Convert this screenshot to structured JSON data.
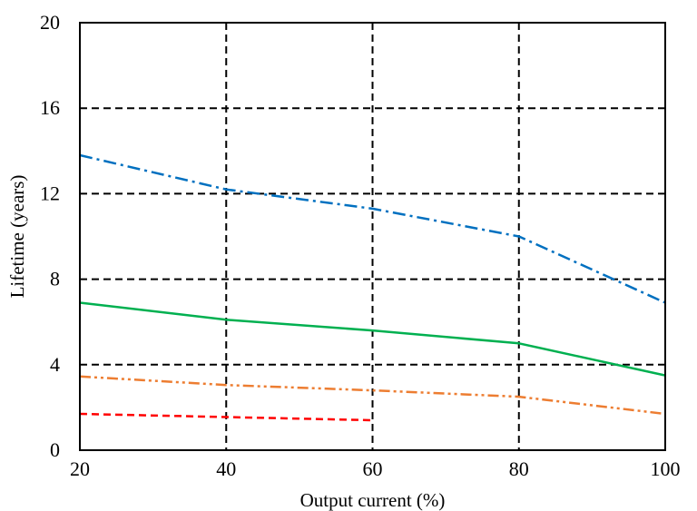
{
  "chart_data": {
    "type": "line",
    "title": "",
    "xlabel": "Output current (%)",
    "ylabel": "Lifetime (years)",
    "xlim": [
      20,
      100
    ],
    "ylim": [
      0,
      20
    ],
    "xticks": [
      "20",
      "40",
      "60",
      "80",
      "100"
    ],
    "yticks": [
      "0",
      "4",
      "8",
      "12",
      "16",
      "20"
    ],
    "grid": {
      "x": true,
      "y": true,
      "style": "dashed",
      "color": "#000000"
    },
    "legend": "none",
    "series": [
      {
        "color": "#0070C0",
        "dash": "dash-dot",
        "x": [
          20,
          40,
          60,
          80,
          100
        ],
        "y": [
          13.8,
          12.2,
          11.3,
          10.0,
          6.9
        ]
      },
      {
        "color": "#00B050",
        "dash": "solid",
        "x": [
          20,
          40,
          60,
          80,
          100
        ],
        "y": [
          6.9,
          6.1,
          5.6,
          5.0,
          3.5
        ]
      },
      {
        "color": "#ED7D31",
        "dash": "dash-dot-dot",
        "x": [
          20,
          40,
          60,
          80,
          100
        ],
        "y": [
          3.45,
          3.05,
          2.8,
          2.5,
          1.7
        ]
      },
      {
        "color": "#FF0000",
        "dash": "dash",
        "x": [
          20,
          40,
          60
        ],
        "y": [
          1.7,
          1.55,
          1.4
        ]
      }
    ]
  }
}
